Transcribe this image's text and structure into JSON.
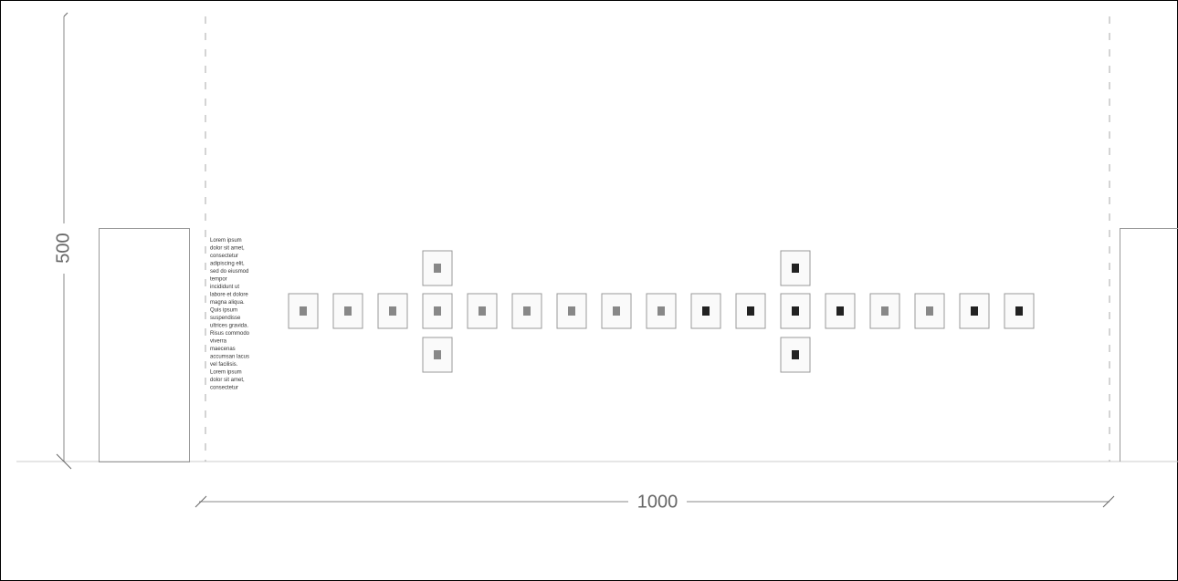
{
  "dimensions": {
    "height": "500",
    "width": "1000"
  },
  "text_block": {
    "lines": [
      "Lorem ipsum",
      "dolor sit amet,",
      "consectetur",
      "adipiscing elit,",
      "sed do eiusmod",
      "tempor",
      "incididunt ut",
      "labore et dolore",
      "magna aliqua.",
      "Quis ipsum",
      "suspendisse",
      "ultrices gravida.",
      "Risus commodo",
      "viverra",
      "maecenas",
      "accumsan lacus",
      "vel facilisis.",
      "Lorem ipsum",
      "dolor sit amet,",
      "consectetur"
    ]
  }
}
